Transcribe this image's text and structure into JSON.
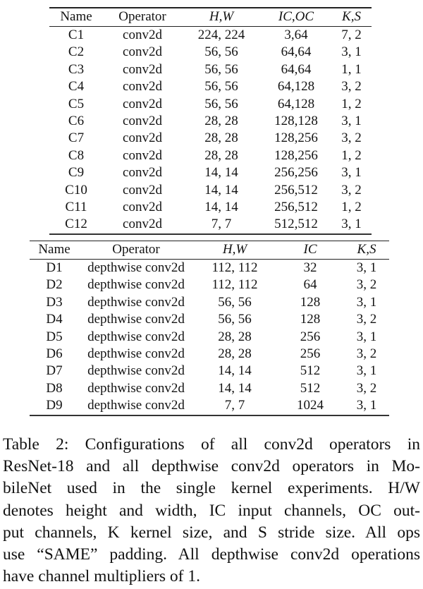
{
  "table_resnet": {
    "headers": [
      "Name",
      "Operator",
      "H,W",
      "IC,OC",
      "K,S"
    ],
    "rows": [
      [
        "C1",
        "conv2d",
        "224, 224",
        "3,64",
        "7, 2"
      ],
      [
        "C2",
        "conv2d",
        "56, 56",
        "64,64",
        "3, 1"
      ],
      [
        "C3",
        "conv2d",
        "56, 56",
        "64,64",
        "1, 1"
      ],
      [
        "C4",
        "conv2d",
        "56, 56",
        "64,128",
        "3, 2"
      ],
      [
        "C5",
        "conv2d",
        "56, 56",
        "64,128",
        "1, 2"
      ],
      [
        "C6",
        "conv2d",
        "28, 28",
        "128,128",
        "3, 1"
      ],
      [
        "C7",
        "conv2d",
        "28, 28",
        "128,256",
        "3, 2"
      ],
      [
        "C8",
        "conv2d",
        "28, 28",
        "128,256",
        "1, 2"
      ],
      [
        "C9",
        "conv2d",
        "14, 14",
        "256,256",
        "3, 1"
      ],
      [
        "C10",
        "conv2d",
        "14, 14",
        "256,512",
        "3, 2"
      ],
      [
        "C11",
        "conv2d",
        "14, 14",
        "256,512",
        "1, 2"
      ],
      [
        "C12",
        "conv2d",
        "7, 7",
        "512,512",
        "3, 1"
      ]
    ]
  },
  "table_mobilenet": {
    "headers": [
      "Name",
      "Operator",
      "H,W",
      "IC",
      "K,S"
    ],
    "rows": [
      [
        "D1",
        "depthwise conv2d",
        "112, 112",
        "32",
        "3, 1"
      ],
      [
        "D2",
        "depthwise conv2d",
        "112, 112",
        "64",
        "3, 2"
      ],
      [
        "D3",
        "depthwise conv2d",
        "56, 56",
        "128",
        "3, 1"
      ],
      [
        "D4",
        "depthwise conv2d",
        "56, 56",
        "128",
        "3, 2"
      ],
      [
        "D5",
        "depthwise conv2d",
        "28, 28",
        "256",
        "3, 1"
      ],
      [
        "D6",
        "depthwise conv2d",
        "28, 28",
        "256",
        "3, 2"
      ],
      [
        "D7",
        "depthwise conv2d",
        "14, 14",
        "512",
        "3, 1"
      ],
      [
        "D8",
        "depthwise conv2d",
        "14, 14",
        "512",
        "3, 2"
      ],
      [
        "D9",
        "depthwise conv2d",
        "7, 7",
        "1024",
        "3, 1"
      ]
    ]
  },
  "caption": {
    "lines": [
      "Table 2:  Configurations of all conv2d operators in",
      "ResNet-18 and all depthwise conv2d operators in Mo-",
      "bileNet used in the single kernel experiments.  H/W",
      "denotes height and width, IC input channels, OC out-",
      "put channels, K kernel size, and S stride size.  All ops",
      "use “SAME” padding. All depthwise conv2d operations",
      "have channel multipliers of 1."
    ]
  }
}
